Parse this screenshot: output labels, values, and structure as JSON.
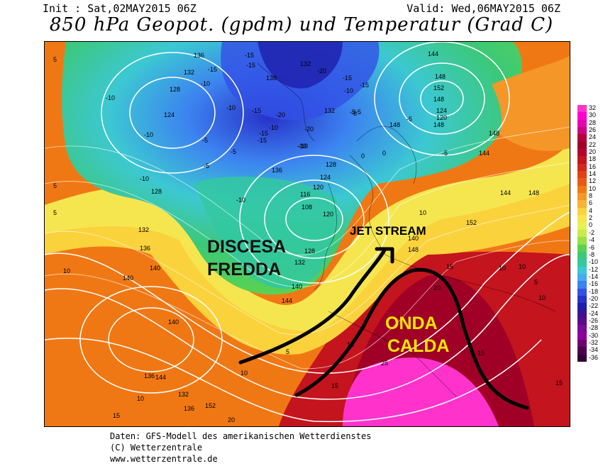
{
  "header": {
    "init": "Init : Sat,02MAY2015 06Z",
    "valid": "Valid: Wed,06MAY2015 06Z",
    "title": "850 hPa Geopot. (gpdm) und Temperatur (Grad C)"
  },
  "annotations": {
    "discesa": "DISCESA",
    "fredda": "FREDDA",
    "jet_stream": "JET STREAM",
    "onda": "ONDA",
    "calda": "CALDA"
  },
  "colors": {
    "cold_label": "#111111",
    "warm_label": "#ffe600",
    "arrow": "#000000",
    "contour": "#ffffff"
  },
  "scale": {
    "labels": [
      "32",
      "30",
      "28",
      "26",
      "24",
      "22",
      "20",
      "18",
      "16",
      "14",
      "12",
      "10",
      "8",
      "6",
      "4",
      "2",
      "0",
      "-2",
      "-4",
      "-6",
      "-8",
      "-10",
      "-12",
      "-14",
      "-16",
      "-18",
      "-20",
      "-22",
      "-24",
      "-26",
      "-28",
      "-30",
      "-32",
      "-34",
      "-36"
    ],
    "colors": [
      "#ff33cc",
      "#ff00cc",
      "#e600b4",
      "#cc0080",
      "#b3003b",
      "#a00026",
      "#b3002d",
      "#c4141e",
      "#d2281e",
      "#e04214",
      "#e85a14",
      "#f07814",
      "#f59628",
      "#f5b432",
      "#fad23c",
      "#f5e650",
      "#e6f05a",
      "#c8eb46",
      "#96e146",
      "#5ad250",
      "#3cc878",
      "#32c8a0",
      "#3cc8d2",
      "#46aaf0",
      "#3c82f0",
      "#3250e6",
      "#2832c8",
      "#1e1eaa",
      "#3c148c",
      "#5a0a8c",
      "#780a96",
      "#8c00a0",
      "#6e006e",
      "#4b0050",
      "#320032"
    ]
  },
  "map_labels": {
    "geopotential": [
      "136",
      "132",
      "128",
      "124",
      "128",
      "136",
      "132",
      "132",
      "138",
      "132",
      "128",
      "124",
      "120",
      "116",
      "108",
      "120",
      "128",
      "132",
      "136",
      "140",
      "144",
      "148",
      "148",
      "152",
      "148",
      "144",
      "148",
      "140",
      "140",
      "136",
      "132",
      "136",
      "140",
      "144",
      "148",
      "152",
      "148",
      "124",
      "120",
      "144",
      "148",
      "152",
      "144",
      "140"
    ],
    "temperature": [
      "-15",
      "-15",
      "-15",
      "-20",
      "-15",
      "-10",
      "-10",
      "-15",
      "-20",
      "-10",
      "-10",
      "-15",
      "-20",
      "-10",
      "-5",
      "-10",
      "-5",
      "-10",
      "-5",
      "-15",
      "-10",
      "-5",
      "-5",
      "-10",
      "-5",
      "0",
      "5",
      "0",
      "-5",
      "10",
      "15",
      "20",
      "15",
      "25",
      "15",
      "10",
      "5",
      "5",
      "10",
      "10",
      "15",
      "20",
      "-15",
      "-10",
      "15",
      "10",
      "5",
      "-5",
      "10",
      "5",
      "10",
      "15"
    ]
  },
  "footer": {
    "line1": "Daten: GFS-Modell des amerikanischen Wetterdienstes",
    "line2": "(C) Wetterzentrale",
    "line3": "www.wetterzentrale.de"
  }
}
